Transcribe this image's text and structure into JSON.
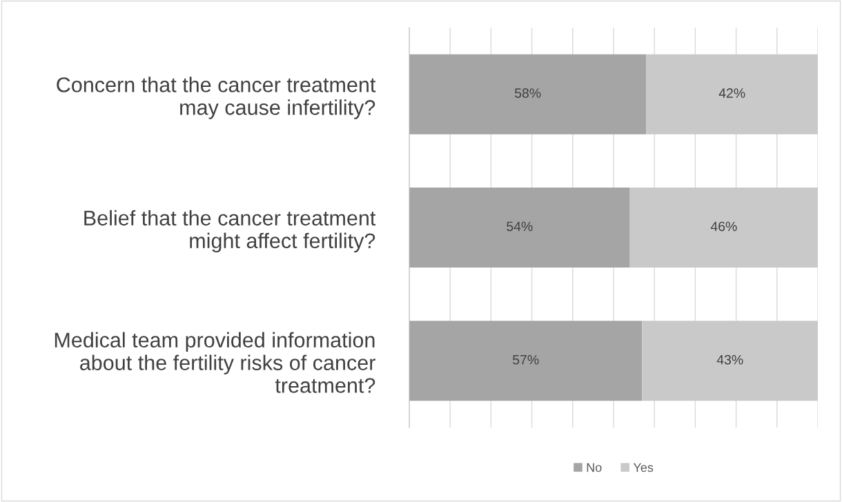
{
  "chart_data": {
    "type": "bar",
    "orientation": "horizontal",
    "stacked": true,
    "categories": [
      "Concern that the cancer treatment\nmay cause infertility?",
      "Belief that the cancer treatment\nmight affect fertility?",
      "Medical team provided information\nabout the fertility risks of cancer\ntreatment?"
    ],
    "series": [
      {
        "name": "No",
        "color": "#a5a5a5",
        "values": [
          58,
          54,
          57
        ],
        "value_labels": [
          "58%",
          "54%",
          "57%"
        ]
      },
      {
        "name": "Yes",
        "color": "#c9c9c9",
        "values": [
          42,
          46,
          43
        ],
        "value_labels": [
          "42%",
          "46%",
          "43%"
        ]
      }
    ],
    "xlim": [
      0,
      100
    ],
    "xticks": [
      {
        "value": 0,
        "label": null
      },
      {
        "value": 10,
        "label": null
      },
      {
        "value": 20,
        "label": null
      },
      {
        "value": 30,
        "label": null
      },
      {
        "value": 40,
        "label": null
      },
      {
        "value": 50,
        "label": null
      },
      {
        "value": 60,
        "label": null
      },
      {
        "value": 70,
        "label": null
      },
      {
        "value": 80,
        "label": null
      },
      {
        "value": 90,
        "label": null
      },
      {
        "value": 100,
        "label": null
      }
    ],
    "tick_labels": "y",
    "grid": "x",
    "legend": "bottom"
  }
}
